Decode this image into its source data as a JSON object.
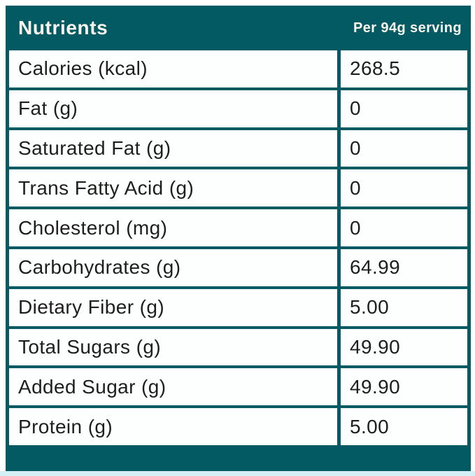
{
  "header": {
    "title": "Nutrients",
    "serving": "Per 94g serving"
  },
  "rows": [
    {
      "label": "Calories (kcal)",
      "value": "268.5"
    },
    {
      "label": "Fat (g)",
      "value": "0"
    },
    {
      "label": "Saturated Fat (g)",
      "value": "0"
    },
    {
      "label": "Trans Fatty Acid (g)",
      "value": "0"
    },
    {
      "label": "Cholesterol (mg)",
      "value": "0"
    },
    {
      "label": "Carbohydrates (g)",
      "value": "64.99"
    },
    {
      "label": "Dietary Fiber (g)",
      "value": "5.00"
    },
    {
      "label": "Total Sugars (g)",
      "value": "49.90"
    },
    {
      "label": "Added Sugar (g)",
      "value": "49.90"
    },
    {
      "label": "Protein (g)",
      "value": "5.00"
    }
  ],
  "colors": {
    "teal": "#035a63",
    "text": "#1e1e1c",
    "header_text": "#f8f6ef",
    "page_bottom": "#d5eff6"
  }
}
